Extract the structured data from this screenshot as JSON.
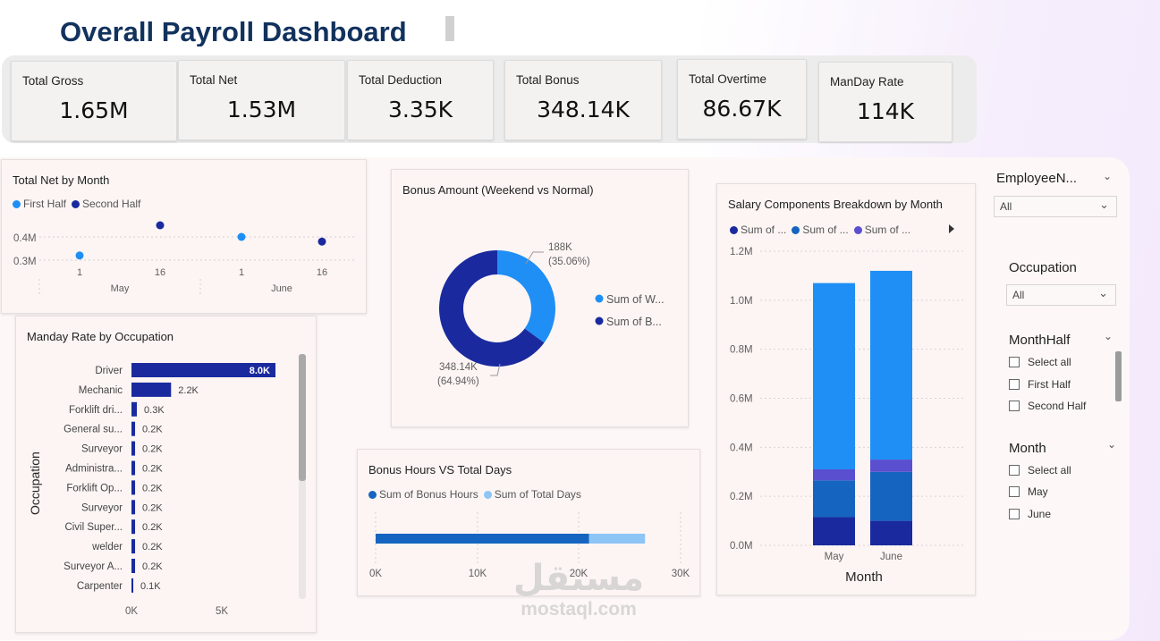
{
  "title": "Overall Payroll Dashboard",
  "kpis": {
    "gross": {
      "label": "Total Gross",
      "value": "1.65M"
    },
    "net": {
      "label": "Total Net",
      "value": "1.53M"
    },
    "deduction": {
      "label": "Total Deduction",
      "value": "3.35K"
    },
    "bonus": {
      "label": "Total Bonus",
      "value": "348.14K"
    },
    "overtime": {
      "label": "Total Overtime",
      "value": "86.67K"
    },
    "manday": {
      "label": "ManDay Rate",
      "value": "114K"
    }
  },
  "net_by_month": {
    "title": "Total Net by Month",
    "legend": [
      "First Half",
      "Second Half"
    ],
    "y_ticks": [
      "0.4M",
      "0.3M"
    ],
    "x_ticks": [
      "1",
      "16",
      "1",
      "16"
    ],
    "months": [
      "May",
      "June"
    ]
  },
  "bonus_donut": {
    "title": "Bonus Amount (Weekend vs Normal)",
    "label_a": "188K",
    "pct_a": "(35.06%)",
    "label_b": "348.14K",
    "pct_b": "(64.94%)",
    "legend": [
      "Sum of W...",
      "Sum of B..."
    ]
  },
  "manday_occ": {
    "title": "Manday Rate by Occupation",
    "y_title": "Occupation",
    "x_ticks": [
      "0K",
      "5K"
    ]
  },
  "bonus_hours": {
    "title": "Bonus Hours VS Total Days",
    "legend": [
      "Sum of Bonus Hours",
      "Sum of Total Days"
    ],
    "x_ticks": [
      "0K",
      "10K",
      "20K",
      "30K"
    ]
  },
  "salary_components": {
    "title": "Salary Components Breakdown by Month",
    "legend": [
      "Sum of ...",
      "Sum of ...",
      "Sum of ..."
    ],
    "y_ticks": [
      "1.2M",
      "1.0M",
      "0.8M",
      "0.6M",
      "0.4M",
      "0.2M",
      "0.0M"
    ],
    "x_title": "Month"
  },
  "slicers": {
    "employee": {
      "title": "EmployeeN...",
      "value": "All"
    },
    "occupation": {
      "title": "Occupation",
      "value": "All"
    },
    "monthhalf": {
      "title": "MonthHalf",
      "options": [
        "Select all",
        "First Half",
        "Second Half"
      ]
    },
    "month": {
      "title": "Month",
      "options": [
        "Select all",
        "May",
        "June"
      ]
    }
  },
  "watermark": {
    "arabic": "مستقل",
    "latin": "mostaql.com"
  },
  "colors": {
    "dark_navy": "#1a2a9e",
    "blue": "#1f8ff5",
    "mid_blue": "#1565c0",
    "purple": "#5a4fcf",
    "light_blue": "#8ec5f7"
  },
  "chart_data": [
    {
      "type": "scatter",
      "title": "Total Net by Month",
      "series": [
        {
          "name": "First Half",
          "points": [
            {
              "month": "May",
              "day": 1,
              "value": 0.32
            },
            {
              "month": "June",
              "day": 1,
              "value": 0.4
            }
          ]
        },
        {
          "name": "Second Half",
          "points": [
            {
              "month": "May",
              "day": 16,
              "value": 0.45
            },
            {
              "month": "June",
              "day": 16,
              "value": 0.38
            }
          ]
        }
      ],
      "ylabel_unit": "M"
    },
    {
      "type": "pie",
      "title": "Bonus Amount (Weekend vs Normal)",
      "values": [
        188,
        348.14
      ],
      "percent": [
        35.06,
        64.94
      ],
      "legend": "right"
    },
    {
      "type": "bar",
      "title": "Manday Rate by Occupation",
      "categories": [
        "Driver",
        "Mechanic",
        "Forklift dri...",
        "General su...",
        "Surveyor",
        "Administra...",
        "Forklift Op...",
        "Surveyor",
        "Civil Super...",
        "welder",
        "Surveyor A...",
        "Carpenter"
      ],
      "values": [
        8.0,
        2.2,
        0.3,
        0.2,
        0.2,
        0.2,
        0.2,
        0.2,
        0.2,
        0.2,
        0.2,
        0.1
      ],
      "labels": [
        "8.0K",
        "2.2K",
        "0.3K",
        "0.2K",
        "0.2K",
        "0.2K",
        "0.2K",
        "0.2K",
        "0.2K",
        "0.2K",
        "0.2K",
        "0.1K"
      ],
      "xlim": [
        0,
        8.2
      ]
    },
    {
      "type": "bar",
      "title": "Bonus Hours VS Total Days",
      "series": [
        {
          "name": "Sum of Bonus Hours",
          "value": 21000
        },
        {
          "name": "Sum of Total Days",
          "value": 5500
        }
      ],
      "xlim": [
        0,
        30000
      ]
    },
    {
      "type": "bar",
      "title": "Salary Components Breakdown by Month",
      "categories": [
        "May",
        "June"
      ],
      "stacks": [
        {
          "color": "dark",
          "values": [
            0.115,
            0.1
          ]
        },
        {
          "color": "mid",
          "values": [
            0.15,
            0.2
          ]
        },
        {
          "color": "purple",
          "values": [
            0.045,
            0.05
          ]
        },
        {
          "color": "blue",
          "values": [
            0.76,
            0.77
          ]
        }
      ],
      "ylim": [
        0,
        1.2
      ],
      "xlabel": "Month"
    }
  ]
}
